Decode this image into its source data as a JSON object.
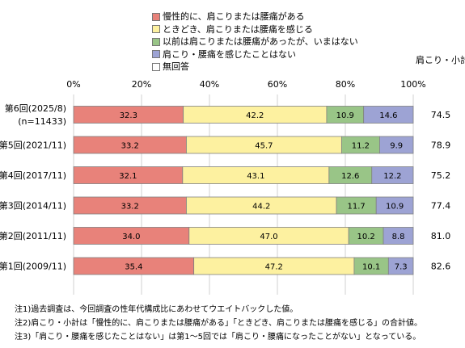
{
  "legend": [
    {
      "label": "慢性的に、肩こりまたは腰痛がある",
      "color": "#e8827a"
    },
    {
      "label": "ときどき、肩こりまたは腰痛を感じる",
      "color": "#fdf1a0"
    },
    {
      "label": "以前は肩こりまたは腰痛があったが、いまはない",
      "color": "#99c587"
    },
    {
      "label": "肩こり・腰痛を感じたことはない",
      "color": "#9da3d4"
    },
    {
      "label": "無回答",
      "color": "#ffffff"
    }
  ],
  "subtotal_header": "肩こり・小計",
  "notes": [
    "注1)過去調査は、今回調査の性年代構成比にあわせてウエイトバックした値。",
    "注2)肩こり・小計は「慢性的に、肩こりまたは腰痛がある」「ときどき、肩こりまたは腰痛を感じる」の合計値。",
    "注3)「肩こり・腰痛を感じたことはない」は第1～5回では「肩こり・腰痛になったことがない」となっている。"
  ],
  "chart_data": {
    "type": "bar",
    "orientation": "horizontal",
    "stacked": true,
    "xlim": [
      0,
      100
    ],
    "x_ticks": [
      "0%",
      "20%",
      "40%",
      "60%",
      "80%",
      "100%"
    ],
    "categories": [
      [
        "第6回(2025/8)",
        "(n=11433)"
      ],
      [
        "第5回(2021/11)"
      ],
      [
        "第4回(2017/11)"
      ],
      [
        "第3回(2014/11)"
      ],
      [
        "第2回(2011/11)"
      ],
      [
        "第1回(2009/11)"
      ]
    ],
    "series": [
      {
        "name": "慢性的に、肩こりまたは腰痛がある",
        "values": [
          32.3,
          33.2,
          32.1,
          33.2,
          34.0,
          35.4
        ],
        "labels": [
          "32.3",
          "33.2",
          "32.1",
          "33.2",
          "34.0",
          "35.4"
        ]
      },
      {
        "name": "ときどき、肩こりまたは腰痛を感じる",
        "values": [
          42.2,
          45.7,
          43.1,
          44.2,
          47.0,
          47.2
        ],
        "labels": [
          "42.2",
          "45.7",
          "43.1",
          "44.2",
          "47.0",
          "47.2"
        ]
      },
      {
        "name": "以前は肩こりまたは腰痛があったが、いまはない",
        "values": [
          10.9,
          11.2,
          12.6,
          11.7,
          10.2,
          10.1
        ],
        "labels": [
          "10.9",
          "11.2",
          "12.6",
          "11.7",
          "10.2",
          "10.1"
        ]
      },
      {
        "name": "肩こり・腰痛を感じたことはない",
        "values": [
          14.6,
          9.9,
          12.2,
          10.9,
          8.8,
          7.3
        ],
        "labels": [
          "14.6",
          "9.9",
          "12.2",
          "10.9",
          "8.8",
          "7.3"
        ]
      },
      {
        "name": "無回答",
        "values": [
          0,
          0,
          0,
          0,
          0,
          0
        ],
        "labels": [
          "",
          "",
          "",
          "",
          "",
          ""
        ]
      }
    ],
    "subtotals": [
      "74.5",
      "78.9",
      "75.2",
      "77.4",
      "81.0",
      "82.6"
    ],
    "grid": true,
    "legend_position": "top"
  }
}
